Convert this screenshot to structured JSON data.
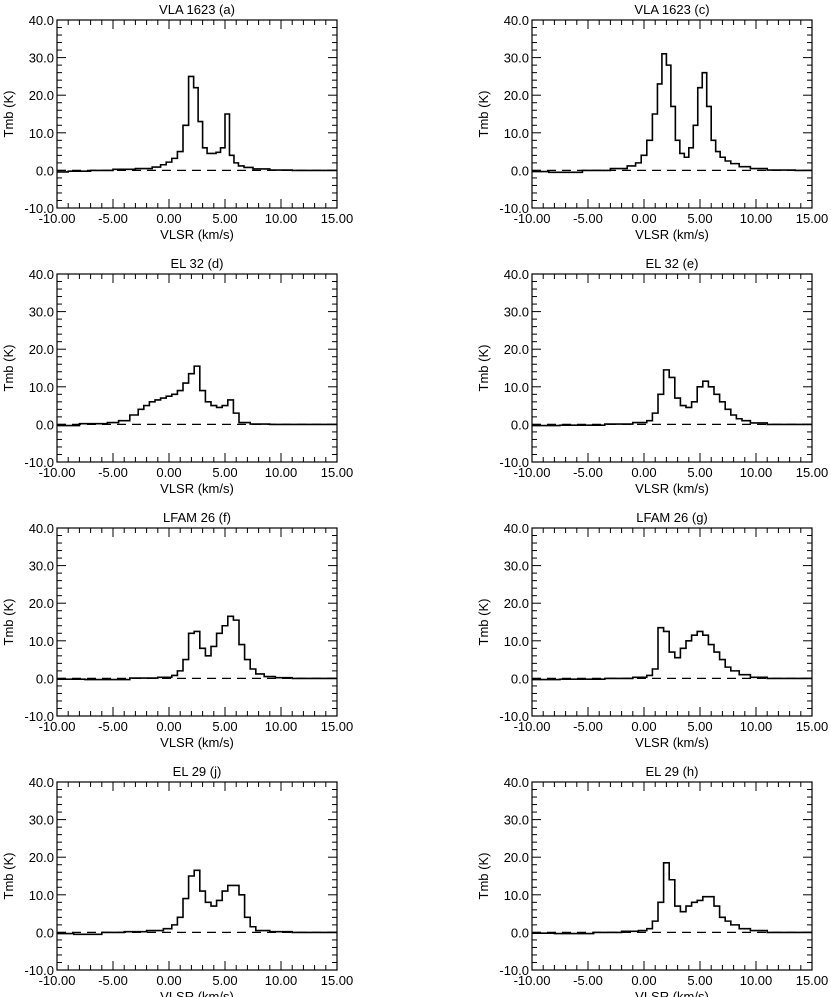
{
  "chart_data": [
    {
      "type": "line",
      "title": "VLA 1623 (a)",
      "xlabel": "VLSR (km/s)",
      "ylabel": "Tmb (K)",
      "xlim": [
        -10,
        15
      ],
      "ylim": [
        -10,
        40
      ],
      "x_ticks": [
        "-10.00",
        "-5.00",
        "0.00",
        "5.00",
        "10.00",
        "15.00"
      ],
      "y_ticks": [
        "-10.0",
        "0.0",
        "10.0",
        "20.0",
        "30.0",
        "40.0"
      ],
      "baseline": 0,
      "step": "mid",
      "x": [
        -10.0,
        -8.0,
        -6.0,
        -4.0,
        -2.0,
        -1.0,
        -0.5,
        0.0,
        0.5,
        1.0,
        1.5,
        2.0,
        2.4,
        2.8,
        3.2,
        3.6,
        4.0,
        4.4,
        4.8,
        5.2,
        5.6,
        6.0,
        6.4,
        7.0,
        8.0,
        10.0,
        12.0,
        15.0
      ],
      "series": [
        {
          "values": [
            -0.4,
            -0.2,
            0.0,
            0.3,
            0.5,
            0.9,
            1.5,
            2.2,
            3.2,
            5.0,
            12.0,
            25.0,
            22.0,
            13.0,
            6.0,
            4.5,
            4.5,
            4.8,
            6.0,
            15.0,
            4.0,
            2.0,
            1.2,
            0.8,
            0.4,
            0.1,
            0.0,
            0.0
          ]
        }
      ]
    },
    {
      "type": "line",
      "title": "VLA 1623 (c)",
      "xlabel": "VLSR (km/s)",
      "ylabel": "Tmb (K)",
      "xlim": [
        -10,
        15
      ],
      "ylim": [
        -10,
        40
      ],
      "x_ticks": [
        "-10.00",
        "-5.00",
        "0.00",
        "5.00",
        "10.00",
        "15.00"
      ],
      "y_ticks": [
        "-10.0",
        "0.0",
        "10.0",
        "20.0",
        "30.0",
        "40.0"
      ],
      "baseline": 0,
      "step": "mid",
      "x": [
        -10.0,
        -7.0,
        -4.0,
        -2.0,
        -1.0,
        -0.5,
        0.0,
        0.5,
        1.0,
        1.4,
        1.8,
        2.2,
        2.6,
        3.0,
        3.4,
        3.8,
        4.2,
        4.6,
        5.0,
        5.4,
        5.8,
        6.2,
        6.6,
        7.0,
        7.5,
        8.0,
        9.0,
        10.0,
        12.0,
        15.0
      ],
      "series": [
        {
          "values": [
            -0.3,
            -0.5,
            0.0,
            0.5,
            1.2,
            2.0,
            4.0,
            8.0,
            15.0,
            23.0,
            31.0,
            28.0,
            17.0,
            8.0,
            4.5,
            3.5,
            6.0,
            12.0,
            22.0,
            26.0,
            17.0,
            8.0,
            5.0,
            3.5,
            2.5,
            1.8,
            1.0,
            0.5,
            0.1,
            0.0
          ]
        }
      ]
    },
    {
      "type": "line",
      "title": "EL 32 (d)",
      "xlabel": "VLSR (km/s)",
      "ylabel": "Tmb (K)",
      "xlim": [
        -10,
        15
      ],
      "ylim": [
        -10,
        40
      ],
      "x_ticks": [
        "-10.00",
        "-5.00",
        "0.00",
        "5.00",
        "10.00",
        "15.00"
      ],
      "y_ticks": [
        "-10.0",
        "0.0",
        "10.0",
        "20.0",
        "30.0",
        "40.0"
      ],
      "baseline": 0,
      "step": "mid",
      "x": [
        -10.0,
        -6.0,
        -5.0,
        -4.0,
        -3.0,
        -2.5,
        -2.0,
        -1.5,
        -1.0,
        -0.5,
        0.0,
        0.5,
        1.0,
        1.5,
        2.0,
        2.5,
        3.0,
        3.5,
        4.0,
        4.5,
        5.0,
        5.5,
        6.0,
        6.5,
        8.0,
        10.0,
        15.0
      ],
      "series": [
        {
          "values": [
            -0.3,
            0.2,
            0.5,
            1.0,
            2.5,
            4.0,
            5.0,
            6.0,
            6.5,
            7.0,
            7.5,
            8.0,
            9.0,
            11.0,
            13.5,
            15.5,
            9.0,
            6.0,
            5.0,
            4.5,
            5.0,
            6.5,
            3.0,
            0.5,
            0.1,
            0.0,
            0.0
          ]
        }
      ]
    },
    {
      "type": "line",
      "title": "EL 32 (e)",
      "xlabel": "VLSR (km/s)",
      "ylabel": "Tmb (K)",
      "xlim": [
        -10,
        15
      ],
      "ylim": [
        -10,
        40
      ],
      "x_ticks": [
        "-10.00",
        "-5.00",
        "0.00",
        "5.00",
        "10.00",
        "15.00"
      ],
      "y_ticks": [
        "-10.0",
        "0.0",
        "10.0",
        "20.0",
        "30.0",
        "40.0"
      ],
      "baseline": 0,
      "step": "mid",
      "x": [
        -10.0,
        -5.0,
        -2.0,
        0.0,
        0.5,
        1.0,
        1.5,
        2.0,
        2.5,
        3.0,
        3.5,
        4.0,
        4.5,
        5.0,
        5.5,
        6.0,
        6.5,
        7.0,
        7.5,
        8.0,
        8.5,
        9.0,
        10.0,
        12.0,
        15.0
      ],
      "series": [
        {
          "values": [
            -0.3,
            -0.2,
            0.1,
            0.5,
            1.0,
            3.0,
            8.0,
            14.5,
            12.5,
            7.0,
            5.0,
            4.5,
            6.0,
            10.0,
            11.5,
            10.0,
            8.0,
            6.0,
            4.0,
            2.5,
            1.5,
            1.0,
            0.4,
            0.0,
            0.0
          ]
        }
      ]
    },
    {
      "type": "line",
      "title": "LFAM 26 (f)",
      "xlabel": "VLSR (km/s)",
      "ylabel": "Tmb (K)",
      "xlim": [
        -10,
        15
      ],
      "ylim": [
        -10,
        40
      ],
      "x_ticks": [
        "-10.00",
        "-5.00",
        "0.00",
        "5.00",
        "10.00",
        "15.00"
      ],
      "y_ticks": [
        "-10.0",
        "0.0",
        "10.0",
        "20.0",
        "30.0",
        "40.0"
      ],
      "baseline": 0,
      "step": "mid",
      "x": [
        -10.0,
        -5.0,
        -2.0,
        0.0,
        0.5,
        1.0,
        1.5,
        2.0,
        2.5,
        3.0,
        3.5,
        4.0,
        4.5,
        5.0,
        5.5,
        6.0,
        6.5,
        7.0,
        7.5,
        8.0,
        9.0,
        10.0,
        12.0,
        15.0
      ],
      "series": [
        {
          "values": [
            -0.2,
            -0.3,
            0.1,
            0.3,
            0.8,
            2.0,
            5.0,
            12.0,
            12.5,
            8.0,
            6.0,
            8.5,
            12.0,
            14.0,
            16.5,
            15.5,
            9.0,
            5.0,
            2.5,
            1.2,
            0.5,
            0.2,
            0.0,
            0.0
          ]
        }
      ]
    },
    {
      "type": "line",
      "title": "LFAM 26 (g)",
      "xlabel": "VLSR (km/s)",
      "ylabel": "Tmb (K)",
      "xlim": [
        -10,
        15
      ],
      "ylim": [
        -10,
        40
      ],
      "x_ticks": [
        "-10.00",
        "-5.00",
        "0.00",
        "5.00",
        "10.00",
        "15.00"
      ],
      "y_ticks": [
        "-10.0",
        "0.0",
        "10.0",
        "20.0",
        "30.0",
        "40.0"
      ],
      "baseline": 0,
      "step": "mid",
      "x": [
        -10.0,
        -5.0,
        -2.0,
        0.0,
        0.5,
        1.0,
        1.5,
        2.0,
        2.5,
        3.0,
        3.5,
        4.0,
        4.5,
        5.0,
        5.5,
        6.0,
        6.5,
        7.0,
        7.5,
        8.0,
        9.0,
        10.0,
        12.0,
        15.0
      ],
      "series": [
        {
          "values": [
            -0.3,
            -0.2,
            0.0,
            0.3,
            0.8,
            2.5,
            13.5,
            12.5,
            7.0,
            5.5,
            8.0,
            10.0,
            11.5,
            12.5,
            11.5,
            9.0,
            7.0,
            5.0,
            3.0,
            2.0,
            1.0,
            0.3,
            0.0,
            0.0
          ]
        }
      ]
    },
    {
      "type": "line",
      "title": "EL 29 (j)",
      "xlabel": "VLSR (km/s)",
      "ylabel": "Tmb (K)",
      "xlim": [
        -10,
        15
      ],
      "ylim": [
        -10,
        40
      ],
      "x_ticks": [
        "-10.00",
        "-5.00",
        "0.00",
        "5.00",
        "10.00",
        "15.00"
      ],
      "y_ticks": [
        "-10.0",
        "0.0",
        "10.0",
        "20.0",
        "30.0",
        "40.0"
      ],
      "baseline": 0,
      "step": "mid",
      "x": [
        -10.0,
        -7.0,
        -5.0,
        -3.0,
        -1.0,
        0.0,
        0.5,
        1.0,
        1.5,
        2.0,
        2.5,
        3.0,
        3.5,
        4.0,
        4.5,
        5.0,
        5.5,
        6.0,
        6.5,
        7.0,
        7.5,
        8.0,
        10.0,
        12.0,
        15.0
      ],
      "series": [
        {
          "values": [
            -0.3,
            -0.5,
            0.0,
            0.2,
            0.5,
            1.0,
            2.0,
            4.0,
            9.0,
            15.0,
            16.5,
            11.0,
            8.0,
            7.0,
            8.5,
            11.0,
            12.5,
            12.5,
            10.0,
            4.0,
            1.5,
            0.5,
            0.2,
            0.0,
            0.0
          ]
        }
      ]
    },
    {
      "type": "line",
      "title": "EL 29 (h)",
      "xlabel": "VLSR (km/s)",
      "ylabel": "Tmb (K)",
      "xlim": [
        -10,
        15
      ],
      "ylim": [
        -10,
        40
      ],
      "x_ticks": [
        "-10.00",
        "-5.00",
        "0.00",
        "5.00",
        "10.00",
        "15.00"
      ],
      "y_ticks": [
        "-10.0",
        "0.0",
        "10.0",
        "20.0",
        "30.0",
        "40.0"
      ],
      "baseline": 0,
      "step": "mid",
      "x": [
        -10.0,
        -6.0,
        -3.0,
        -1.0,
        0.0,
        0.5,
        1.0,
        1.5,
        2.0,
        2.5,
        3.0,
        3.5,
        4.0,
        4.5,
        5.0,
        5.5,
        6.0,
        6.5,
        7.0,
        7.5,
        8.0,
        9.0,
        10.0,
        12.0,
        15.0
      ],
      "series": [
        {
          "values": [
            -0.2,
            -0.3,
            0.0,
            0.3,
            0.5,
            1.0,
            3.0,
            8.0,
            18.5,
            14.0,
            7.0,
            5.5,
            7.0,
            8.0,
            8.5,
            9.5,
            9.5,
            7.0,
            4.0,
            3.0,
            2.0,
            1.0,
            0.5,
            0.0,
            0.0
          ]
        }
      ]
    }
  ]
}
